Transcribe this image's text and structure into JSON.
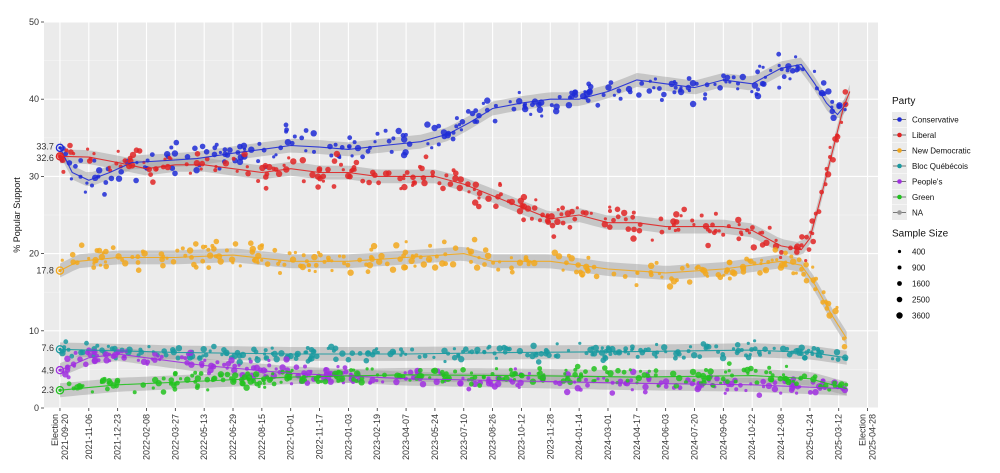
{
  "chart_data": {
    "type": "scatter",
    "title": "",
    "xlabel": "",
    "ylabel": "% Popular Support",
    "ylim": [
      0,
      50
    ],
    "yticks": [
      0,
      10,
      20,
      30,
      40,
      50
    ],
    "xlim": [
      "2021-08-25",
      "2025-05-15"
    ],
    "xticks": [
      {
        "date": "2021-09-20",
        "lines": [
          "Election",
          "2021-09-20"
        ]
      },
      {
        "date": "2021-11-06",
        "lines": [
          "2021-11-06"
        ]
      },
      {
        "date": "2021-12-23",
        "lines": [
          "2021-12-23"
        ]
      },
      {
        "date": "2022-02-08",
        "lines": [
          "2022-02-08"
        ]
      },
      {
        "date": "2022-03-27",
        "lines": [
          "2022-03-27"
        ]
      },
      {
        "date": "2022-05-13",
        "lines": [
          "2022-05-13"
        ]
      },
      {
        "date": "2022-06-29",
        "lines": [
          "2022-06-29"
        ]
      },
      {
        "date": "2022-08-15",
        "lines": [
          "2022-08-15"
        ]
      },
      {
        "date": "2022-10-01",
        "lines": [
          "2022-10-01"
        ]
      },
      {
        "date": "2022-11-17",
        "lines": [
          "2022-11-17"
        ]
      },
      {
        "date": "2023-01-03",
        "lines": [
          "2023-01-03"
        ]
      },
      {
        "date": "2023-02-19",
        "lines": [
          "2023-02-19"
        ]
      },
      {
        "date": "2023-04-07",
        "lines": [
          "2023-04-07"
        ]
      },
      {
        "date": "2023-05-24",
        "lines": [
          "2023-05-24"
        ]
      },
      {
        "date": "2023-07-10",
        "lines": [
          "2023-07-10"
        ]
      },
      {
        "date": "2023-08-26",
        "lines": [
          "2023-08-26"
        ]
      },
      {
        "date": "2023-10-12",
        "lines": [
          "2023-10-12"
        ]
      },
      {
        "date": "2023-11-28",
        "lines": [
          "2023-11-28"
        ]
      },
      {
        "date": "2024-01-14",
        "lines": [
          "2024-01-14"
        ]
      },
      {
        "date": "2024-03-01",
        "lines": [
          "2024-03-01"
        ]
      },
      {
        "date": "2024-04-17",
        "lines": [
          "2024-04-17"
        ]
      },
      {
        "date": "2024-06-03",
        "lines": [
          "2024-06-03"
        ]
      },
      {
        "date": "2024-07-20",
        "lines": [
          "2024-07-20"
        ]
      },
      {
        "date": "2024-09-05",
        "lines": [
          "2024-09-05"
        ]
      },
      {
        "date": "2024-10-22",
        "lines": [
          "2024-10-22"
        ]
      },
      {
        "date": "2024-12-08",
        "lines": [
          "2024-12-08"
        ]
      },
      {
        "date": "2025-01-24",
        "lines": [
          "2025-01-24"
        ]
      },
      {
        "date": "2025-03-12",
        "lines": [
          "2025-03-12"
        ]
      },
      {
        "date": "2025-04-28",
        "lines": [
          "Election",
          "2025-04-28"
        ]
      }
    ],
    "series": [
      {
        "name": "Conservative",
        "color": "#1f2bd6",
        "election_result": 33.7,
        "trend": [
          [
            "2021-09-20",
            33.7
          ],
          [
            "2021-10-10",
            30.5
          ],
          [
            "2021-11-06",
            29.5
          ],
          [
            "2021-12-10",
            30.5
          ],
          [
            "2022-01-15",
            31.8
          ],
          [
            "2022-03-01",
            32.0
          ],
          [
            "2022-05-01",
            32.3
          ],
          [
            "2022-06-29",
            33.0
          ],
          [
            "2022-08-15",
            33.5
          ],
          [
            "2022-10-01",
            34.0
          ],
          [
            "2022-11-17",
            33.8
          ],
          [
            "2023-01-03",
            33.5
          ],
          [
            "2023-03-01",
            34.0
          ],
          [
            "2023-05-01",
            34.5
          ],
          [
            "2023-06-15",
            35.5
          ],
          [
            "2023-07-20",
            37.0
          ],
          [
            "2023-08-26",
            38.8
          ],
          [
            "2023-10-12",
            39.5
          ],
          [
            "2023-11-28",
            40.0
          ],
          [
            "2024-01-14",
            40.0
          ],
          [
            "2024-03-01",
            41.0
          ],
          [
            "2024-04-17",
            42.5
          ],
          [
            "2024-06-03",
            42.0
          ],
          [
            "2024-07-20",
            41.5
          ],
          [
            "2024-09-05",
            42.5
          ],
          [
            "2024-10-22",
            42.0
          ],
          [
            "2024-12-08",
            44.0
          ],
          [
            "2025-01-10",
            44.5
          ],
          [
            "2025-02-01",
            42.0
          ],
          [
            "2025-02-20",
            39.5
          ],
          [
            "2025-03-10",
            38.0
          ],
          [
            "2025-03-25",
            39.5
          ]
        ]
      },
      {
        "name": "Liberal",
        "color": "#e02424",
        "election_result": 32.6,
        "trend": [
          [
            "2021-09-20",
            32.6
          ],
          [
            "2021-11-06",
            32.5
          ],
          [
            "2021-12-23",
            31.8
          ],
          [
            "2022-02-08",
            31.0
          ],
          [
            "2022-03-27",
            31.5
          ],
          [
            "2022-05-13",
            31.5
          ],
          [
            "2022-06-29",
            31.0
          ],
          [
            "2022-08-15",
            30.5
          ],
          [
            "2022-10-01",
            31.0
          ],
          [
            "2022-11-17",
            30.5
          ],
          [
            "2023-01-03",
            30.5
          ],
          [
            "2023-02-19",
            30.0
          ],
          [
            "2023-04-07",
            30.0
          ],
          [
            "2023-05-24",
            30.0
          ],
          [
            "2023-07-10",
            29.0
          ],
          [
            "2023-08-26",
            27.5
          ],
          [
            "2023-10-12",
            26.0
          ],
          [
            "2023-11-28",
            24.5
          ],
          [
            "2024-01-14",
            25.0
          ],
          [
            "2024-03-01",
            24.0
          ],
          [
            "2024-04-17",
            24.0
          ],
          [
            "2024-06-03",
            23.5
          ],
          [
            "2024-07-20",
            23.5
          ],
          [
            "2024-09-05",
            23.5
          ],
          [
            "2024-10-22",
            23.0
          ],
          [
            "2024-12-08",
            21.0
          ],
          [
            "2025-01-10",
            20.5
          ],
          [
            "2025-01-24",
            22.0
          ],
          [
            "2025-02-10",
            27.0
          ],
          [
            "2025-03-01",
            33.0
          ],
          [
            "2025-03-20",
            39.0
          ],
          [
            "2025-03-30",
            41.0
          ]
        ]
      },
      {
        "name": "New Democratic",
        "color": "#f2a81d",
        "election_result": 17.8,
        "trend": [
          [
            "2021-09-20",
            17.8
          ],
          [
            "2021-10-20",
            19.0
          ],
          [
            "2021-12-23",
            19.5
          ],
          [
            "2022-03-27",
            19.5
          ],
          [
            "2022-06-29",
            19.8
          ],
          [
            "2022-10-01",
            19.0
          ],
          [
            "2023-01-03",
            19.0
          ],
          [
            "2023-04-07",
            19.5
          ],
          [
            "2023-07-10",
            20.0
          ],
          [
            "2023-08-26",
            19.0
          ],
          [
            "2023-11-28",
            19.0
          ],
          [
            "2024-03-01",
            18.0
          ],
          [
            "2024-06-03",
            17.5
          ],
          [
            "2024-09-05",
            18.0
          ],
          [
            "2024-12-08",
            19.0
          ],
          [
            "2025-01-10",
            18.5
          ],
          [
            "2025-02-01",
            16.0
          ],
          [
            "2025-03-01",
            12.0
          ],
          [
            "2025-03-25",
            9.0
          ]
        ]
      },
      {
        "name": "Bloc Québécois",
        "color": "#1a9aa0",
        "election_result": 7.6,
        "trend": [
          [
            "2021-09-20",
            7.6
          ],
          [
            "2022-03-27",
            7.2
          ],
          [
            "2022-10-01",
            7.0
          ],
          [
            "2023-04-07",
            7.0
          ],
          [
            "2023-10-12",
            7.2
          ],
          [
            "2024-04-17",
            7.3
          ],
          [
            "2024-10-22",
            7.5
          ],
          [
            "2025-01-24",
            7.2
          ],
          [
            "2025-03-25",
            6.5
          ]
        ]
      },
      {
        "name": "People's",
        "color": "#a030e0",
        "election_result": 4.9,
        "trend": [
          [
            "2021-09-20",
            4.9
          ],
          [
            "2021-11-06",
            6.5
          ],
          [
            "2021-12-23",
            7.0
          ],
          [
            "2022-02-08",
            6.5
          ],
          [
            "2022-05-13",
            5.5
          ],
          [
            "2022-10-01",
            4.5
          ],
          [
            "2023-04-07",
            3.8
          ],
          [
            "2023-10-12",
            3.5
          ],
          [
            "2024-04-17",
            3.2
          ],
          [
            "2024-10-22",
            3.0
          ],
          [
            "2025-03-25",
            2.5
          ]
        ]
      },
      {
        "name": "Green",
        "color": "#22c21f",
        "election_result": 2.3,
        "trend": [
          [
            "2021-09-20",
            2.3
          ],
          [
            "2021-12-23",
            3.0
          ],
          [
            "2022-05-13",
            3.5
          ],
          [
            "2022-10-01",
            4.0
          ],
          [
            "2023-04-07",
            4.3
          ],
          [
            "2023-10-12",
            4.2
          ],
          [
            "2024-04-17",
            4.0
          ],
          [
            "2024-10-22",
            4.2
          ],
          [
            "2025-01-24",
            3.8
          ],
          [
            "2025-03-25",
            2.5
          ]
        ]
      },
      {
        "name": "NA",
        "color": "#999999",
        "election_result": null,
        "trend": []
      }
    ],
    "election_labels": [
      {
        "party": "Conservative",
        "value": 33.7,
        "text": "33.7"
      },
      {
        "party": "Liberal",
        "value": 32.6,
        "text": "32.6"
      },
      {
        "party": "New Democratic",
        "value": 17.8,
        "text": "17.8"
      },
      {
        "party": "Bloc Québécois",
        "value": 7.6,
        "text": "7.6"
      },
      {
        "party": "People's",
        "value": 4.9,
        "text": "4.9"
      },
      {
        "party": "Green",
        "value": 2.3,
        "text": "2.3"
      }
    ],
    "legend": {
      "position": "right",
      "party_title": "Party",
      "size_title": "Sample Size",
      "sizes": [
        400,
        900,
        1600,
        2500,
        3600
      ]
    },
    "grid": true
  }
}
